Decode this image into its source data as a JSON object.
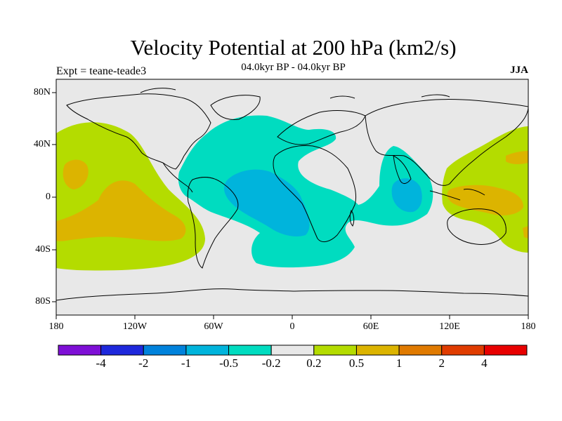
{
  "title": "Velocity Potential at 200 hPa (km2/s)",
  "subtitle": "04.0kyr BP - 04.0kyr BP",
  "experiment_label": "Expt = teane-teade3",
  "season_label": "JJA",
  "map": {
    "projection": "cylindrical equidistant",
    "lon_range": [
      -180,
      180
    ],
    "lat_range": [
      -90,
      90
    ],
    "x_ticks": [
      "180",
      "120W",
      "60W",
      "0",
      "60E",
      "120E",
      "180"
    ],
    "y_ticks": [
      "80N",
      "40N",
      "0",
      "40S",
      "80S"
    ],
    "background_color": "#e8e8e8",
    "coastline_color": "#000000"
  },
  "colorbar": {
    "labels": [
      "-4",
      "-2",
      "-1",
      "-0.5",
      "-0.2",
      "0.2",
      "0.5",
      "1",
      "2",
      "4"
    ],
    "colors": [
      "#7e0fd6",
      "#1e28dc",
      "#0082dc",
      "#00b4dc",
      "#00dcc0",
      "#e8e8e8",
      "#b4dc00",
      "#dcb400",
      "#e07a00",
      "#e03c00",
      "#e80000"
    ]
  },
  "regions": [
    {
      "name": "pacific-positive",
      "color": "#b4dc00"
    },
    {
      "name": "pacific-positive-core",
      "color": "#dcb400"
    },
    {
      "name": "atlantic-negative",
      "color": "#00dcc0"
    },
    {
      "name": "atlantic-negative-core",
      "color": "#00b4dc"
    },
    {
      "name": "indian-negative",
      "color": "#00dcc0"
    },
    {
      "name": "indian-negative-core",
      "color": "#00b4dc"
    },
    {
      "name": "west-pacific-positive",
      "color": "#b4dc00"
    },
    {
      "name": "west-pacific-positive-core",
      "color": "#dcb400"
    }
  ]
}
